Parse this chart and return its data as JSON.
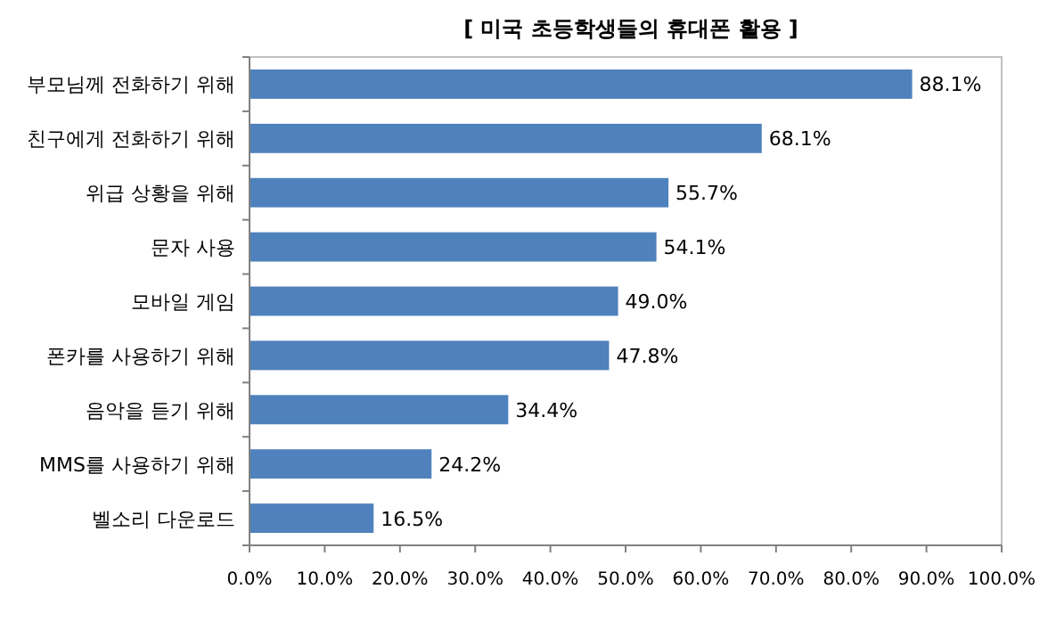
{
  "chart_data": {
    "type": "bar",
    "orientation": "horizontal",
    "title": "[ 미국 초등학생들의 휴대폰 활용 ]",
    "categories": [
      "부모님께 전화하기 위해",
      "친구에게 전화하기 위해",
      "위급 상황을 위해",
      "문자 사용",
      "모바일 게임",
      "폰카를 사용하기 위해",
      "음악을 듣기 위해",
      "MMS를 사용하기 위해",
      "벨소리 다운로드"
    ],
    "values": [
      88.1,
      68.1,
      55.7,
      54.1,
      49.0,
      47.8,
      34.4,
      24.2,
      16.5
    ],
    "value_labels": [
      "88.1%",
      "68.1%",
      "55.7%",
      "54.1%",
      "49.0%",
      "47.8%",
      "34.4%",
      "24.2%",
      "16.5%"
    ],
    "color": "#4f81bd",
    "xlim": [
      0,
      100
    ],
    "xticks": [
      {
        "value": 0,
        "label": "0.0%"
      },
      {
        "value": 10,
        "label": "10.0%"
      },
      {
        "value": 20,
        "label": "20.0%"
      },
      {
        "value": 30,
        "label": "30.0%"
      },
      {
        "value": 40,
        "label": "40.0%"
      },
      {
        "value": 50,
        "label": "50.0%"
      },
      {
        "value": 60,
        "label": "60.0%"
      },
      {
        "value": 70,
        "label": "70.0%"
      },
      {
        "value": 80,
        "label": "80.0%"
      },
      {
        "value": 90,
        "label": "90.0%"
      },
      {
        "value": 100,
        "label": "100.0%"
      }
    ],
    "grid": false
  }
}
